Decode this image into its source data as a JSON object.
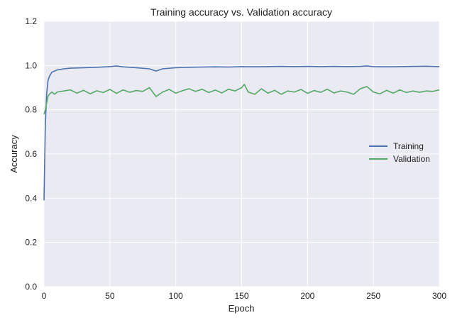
{
  "chart_data": {
    "type": "line",
    "title": "Training accuracy vs. Validation accuracy",
    "xlabel": "Epoch",
    "ylabel": "Accuracy",
    "xlim": [
      0,
      300
    ],
    "ylim": [
      0.0,
      1.2
    ],
    "x_ticks": [
      "0",
      "50",
      "100",
      "150",
      "200",
      "250",
      "300"
    ],
    "y_ticks": [
      "0.0",
      "0.2",
      "0.4",
      "0.6",
      "0.8",
      "1.0",
      "1.2"
    ],
    "grid": true,
    "legend_position": "center-right",
    "series": [
      {
        "name": "Training",
        "color": "#4C72B0",
        "x": [
          0,
          1,
          2,
          3,
          4,
          5,
          6,
          8,
          10,
          15,
          20,
          30,
          40,
          50,
          55,
          60,
          70,
          80,
          85,
          90,
          100,
          110,
          120,
          130,
          140,
          150,
          160,
          170,
          180,
          190,
          200,
          210,
          220,
          230,
          240,
          245,
          250,
          260,
          270,
          280,
          290,
          300
        ],
        "values": [
          0.39,
          0.73,
          0.87,
          0.93,
          0.95,
          0.96,
          0.97,
          0.975,
          0.98,
          0.985,
          0.988,
          0.99,
          0.992,
          0.995,
          0.998,
          0.994,
          0.99,
          0.985,
          0.975,
          0.985,
          0.99,
          0.992,
          0.993,
          0.994,
          0.993,
          0.995,
          0.994,
          0.995,
          0.996,
          0.995,
          0.996,
          0.995,
          0.996,
          0.995,
          0.996,
          0.998,
          0.995,
          0.994,
          0.995,
          0.996,
          0.997,
          0.995
        ]
      },
      {
        "name": "Validation",
        "color": "#55A868",
        "x": [
          0,
          1,
          2,
          3,
          4,
          5,
          6,
          8,
          10,
          15,
          20,
          25,
          30,
          35,
          40,
          45,
          50,
          55,
          60,
          65,
          70,
          75,
          80,
          85,
          90,
          95,
          100,
          105,
          110,
          115,
          120,
          125,
          130,
          135,
          140,
          145,
          150,
          152,
          155,
          160,
          165,
          170,
          175,
          180,
          185,
          190,
          195,
          200,
          205,
          210,
          215,
          220,
          225,
          230,
          235,
          240,
          245,
          250,
          255,
          260,
          265,
          270,
          275,
          280,
          285,
          290,
          295,
          300
        ],
        "values": [
          0.78,
          0.8,
          0.83,
          0.86,
          0.87,
          0.875,
          0.88,
          0.87,
          0.88,
          0.885,
          0.89,
          0.875,
          0.888,
          0.872,
          0.886,
          0.878,
          0.892,
          0.874,
          0.89,
          0.879,
          0.887,
          0.883,
          0.9,
          0.86,
          0.88,
          0.892,
          0.875,
          0.886,
          0.895,
          0.883,
          0.893,
          0.878,
          0.889,
          0.876,
          0.893,
          0.885,
          0.9,
          0.915,
          0.88,
          0.87,
          0.895,
          0.875,
          0.888,
          0.87,
          0.885,
          0.88,
          0.892,
          0.874,
          0.887,
          0.879,
          0.893,
          0.876,
          0.885,
          0.88,
          0.87,
          0.895,
          0.905,
          0.88,
          0.872,
          0.888,
          0.875,
          0.89,
          0.878,
          0.885,
          0.879,
          0.885,
          0.883,
          0.89
        ]
      }
    ]
  },
  "colors": {
    "background": "#EAEAF2",
    "grid": "#FFFFFF",
    "training": "#4C72B0",
    "validation": "#55A868"
  }
}
